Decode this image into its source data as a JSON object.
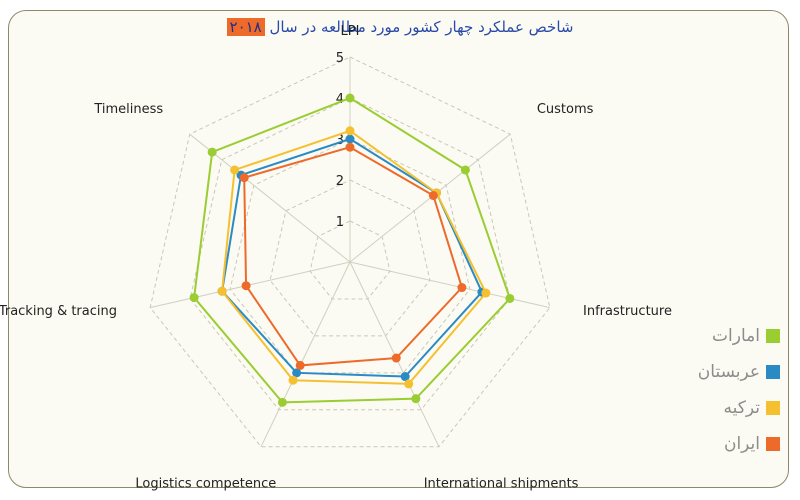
{
  "chart_data": {
    "type": "radar",
    "title_text": "شاخص عملکرد چهار کشور مورد مطالعه در سال",
    "title_year": "۲۰۱۸",
    "axes": [
      "LPI",
      "Customs",
      "Infrastructure",
      "International shipments",
      "Logistics competence",
      "Tracking & tracing",
      "Timeliness"
    ],
    "ticks": [
      "1",
      "2",
      "3",
      "4",
      "5"
    ],
    "range": [
      0,
      5
    ],
    "grid": true,
    "legend_position": "right",
    "series": [
      {
        "name": "امارات",
        "color": "#9acd32",
        "values": [
          4.0,
          3.6,
          4.0,
          3.7,
          3.8,
          3.9,
          4.3
        ]
      },
      {
        "name": "عربستان",
        "color": "#2a8bc4",
        "values": [
          3.0,
          2.7,
          3.3,
          3.1,
          3.0,
          3.2,
          3.4
        ]
      },
      {
        "name": "ترکیه",
        "color": "#f5c030",
        "values": [
          3.2,
          2.7,
          3.4,
          3.3,
          3.2,
          3.2,
          3.6
        ]
      },
      {
        "name": "ایران",
        "color": "#ee6a2a",
        "values": [
          2.8,
          2.6,
          2.8,
          2.6,
          2.8,
          2.6,
          3.3
        ]
      }
    ]
  }
}
